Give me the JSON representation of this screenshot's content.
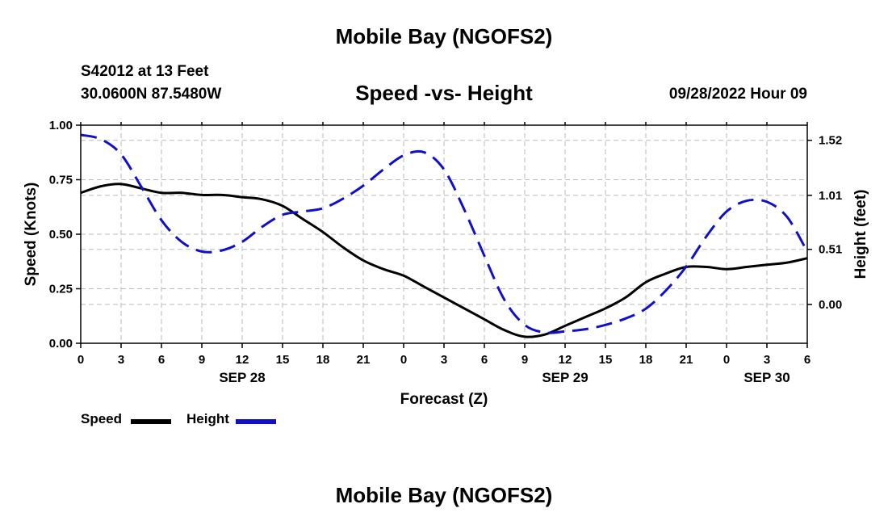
{
  "header": {
    "title": "Mobile Bay (NGOFS2)",
    "station": "S42012 at 13 Feet",
    "coords": "30.0600N  87.5480W",
    "subtitle": "Speed -vs- Height",
    "datetime": "09/28/2022 Hour 09",
    "footer_title": "Mobile Bay (NGOFS2)"
  },
  "legend": {
    "speed": "Speed",
    "height": "Height"
  },
  "colors": {
    "speed": "#000000",
    "height": "#1010cc",
    "grid": "#bbbbbb"
  },
  "chart_data": {
    "type": "line",
    "title": "Speed -vs- Height",
    "xlabel": "Forecast (Z)",
    "ylabel": "Speed (Knots)",
    "y2label": "Height (feet)",
    "xlim": [
      0,
      54
    ],
    "ylim": [
      0,
      1.0
    ],
    "y2lim": [
      -0.36,
      1.66
    ],
    "x_ticks": [
      0,
      3,
      6,
      9,
      12,
      15,
      18,
      21,
      24,
      27,
      30,
      33,
      36,
      39,
      42,
      45,
      48,
      51,
      54
    ],
    "x_tick_labels": [
      "0",
      "3",
      "6",
      "9",
      "12",
      "15",
      "18",
      "21",
      "0",
      "3",
      "6",
      "9",
      "12",
      "15",
      "18",
      "21",
      "0",
      "3",
      "6"
    ],
    "date_labels": [
      {
        "x": 12,
        "label": "SEP 28"
      },
      {
        "x": 36,
        "label": "SEP 29"
      },
      {
        "x": 51,
        "label": "SEP 30"
      }
    ],
    "y_ticks": [
      0.0,
      0.25,
      0.5,
      0.75,
      1.0
    ],
    "y_tick_labels": [
      "0.00",
      "0.25",
      "0.50",
      "0.75",
      "1.00"
    ],
    "y2_ticks": [
      0.0,
      0.51,
      1.01,
      1.52
    ],
    "y2_tick_labels": [
      "0.00",
      "0.51",
      "1.01",
      "1.52"
    ],
    "grid": true,
    "legend_position": "bottom-left",
    "series": [
      {
        "name": "Speed",
        "axis": "left",
        "style": "solid",
        "x": [
          0,
          1.5,
          3,
          4.5,
          6,
          7.5,
          9,
          10.5,
          12,
          13.5,
          15,
          16.5,
          18,
          19.5,
          21,
          22.5,
          24,
          25.5,
          27,
          28.5,
          30,
          31.5,
          33,
          34.5,
          36,
          37.5,
          39,
          40.5,
          42,
          43.5,
          45,
          46.5,
          48,
          49.5,
          51,
          52.5,
          54
        ],
        "values": [
          0.69,
          0.72,
          0.73,
          0.71,
          0.69,
          0.69,
          0.68,
          0.68,
          0.67,
          0.66,
          0.63,
          0.57,
          0.51,
          0.44,
          0.38,
          0.34,
          0.31,
          0.26,
          0.21,
          0.16,
          0.11,
          0.06,
          0.03,
          0.04,
          0.08,
          0.12,
          0.16,
          0.21,
          0.28,
          0.32,
          0.35,
          0.35,
          0.34,
          0.35,
          0.36,
          0.37,
          0.39
        ]
      },
      {
        "name": "Height",
        "axis": "right",
        "style": "dashed",
        "x": [
          0,
          1.5,
          3,
          4.5,
          6,
          7.5,
          9,
          10.5,
          12,
          13.5,
          15,
          16.5,
          18,
          19.5,
          21,
          22.5,
          24,
          25.5,
          27,
          28.5,
          30,
          31.5,
          33,
          34.5,
          36,
          37.5,
          39,
          40.5,
          42,
          43.5,
          45,
          46.5,
          48,
          49.5,
          51,
          52.5,
          54
        ],
        "values": [
          1.57,
          1.53,
          1.39,
          1.09,
          0.78,
          0.58,
          0.49,
          0.5,
          0.58,
          0.72,
          0.83,
          0.86,
          0.89,
          0.98,
          1.1,
          1.25,
          1.38,
          1.41,
          1.25,
          0.88,
          0.45,
          0.04,
          -0.19,
          -0.26,
          -0.25,
          -0.23,
          -0.19,
          -0.13,
          -0.04,
          0.13,
          0.35,
          0.63,
          0.86,
          0.96,
          0.95,
          0.81,
          0.49
        ]
      }
    ]
  }
}
